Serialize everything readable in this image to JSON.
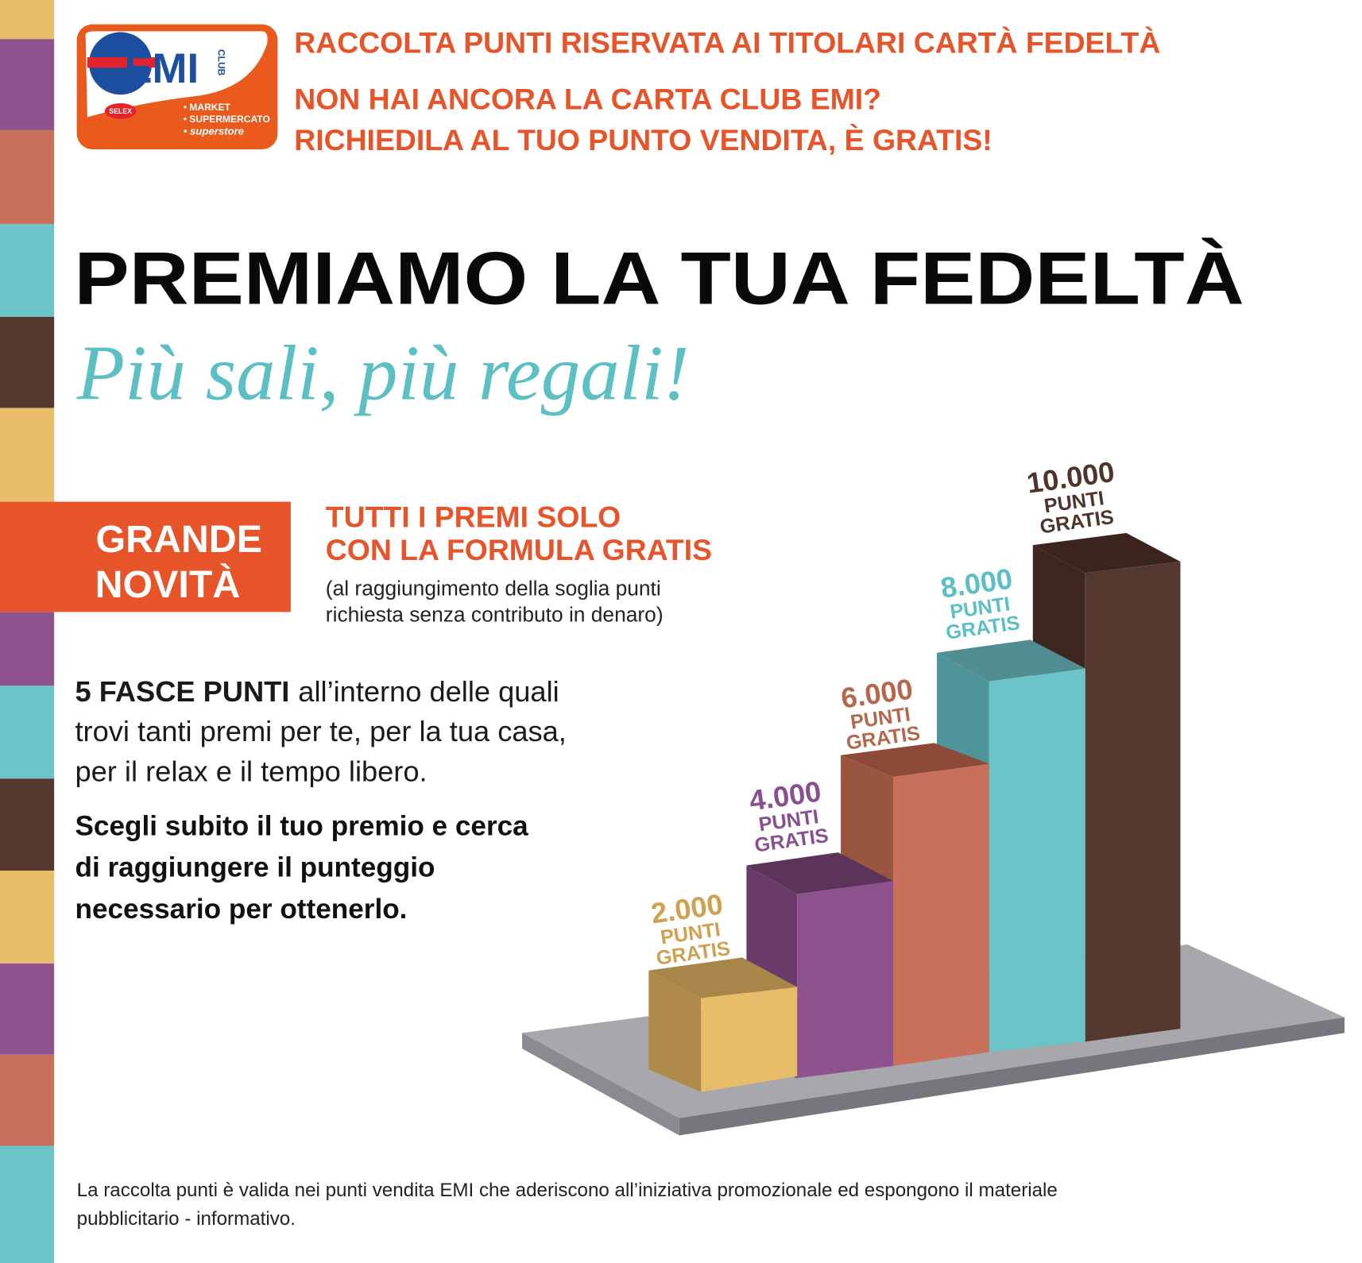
{
  "logo": {
    "brand": "EMI",
    "club": "CLUB",
    "selex": "SELEX",
    "formats": [
      "• MARKET",
      "• SUPERMERCATO",
      "• superstore"
    ]
  },
  "header": {
    "lines": [
      "RACCOLTA PUNTI RISERVATA AI TITOLARI CARTÀ FEDELTÀ",
      "NON HAI ANCORA LA CARTA CLUB EMI?",
      "RICHIEDILA AL TUO PUNTO VENDITA, È GRATIS!"
    ]
  },
  "title": "PREMIAMO LA TUA FEDELTÀ",
  "subtitle": "Più sali, più regali!",
  "badge": [
    "GRANDE",
    "NOVITÀ"
  ],
  "formula": {
    "lines": [
      "TUTTI I PREMI SOLO",
      "CON LA FORMULA GRATIS"
    ],
    "note": [
      "(al raggiungimento della soglia punti",
      "richiesta senza contributo in denaro)"
    ]
  },
  "body": {
    "lead": "5 FASCE PUNTI",
    "lines": [
      "all’interno delle quali",
      "trovi tanti premi per te, per la tua casa,",
      "per il relax e il tempo libero."
    ],
    "call": [
      "Scegli subito il tuo premio e cerca",
      "di raggiungere il punteggio",
      "necessario per ottenerlo."
    ]
  },
  "steps": [
    {
      "amount": "2.000",
      "unit": "PUNTI",
      "tag": "GRATIS"
    },
    {
      "amount": "4.000",
      "unit": "PUNTI",
      "tag": "GRATIS"
    },
    {
      "amount": "6.000",
      "unit": "PUNTI",
      "tag": "GRATIS"
    },
    {
      "amount": "8.000",
      "unit": "PUNTI",
      "tag": "GRATIS"
    },
    {
      "amount": "10.000",
      "unit": "PUNTI",
      "tag": "GRATIS"
    }
  ],
  "footer": [
    "La raccolta punti è valida nei punti vendita EMI che aderiscono all’iniziativa promozionale ed espongono il materiale",
    "pubblicitario - informativo."
  ]
}
